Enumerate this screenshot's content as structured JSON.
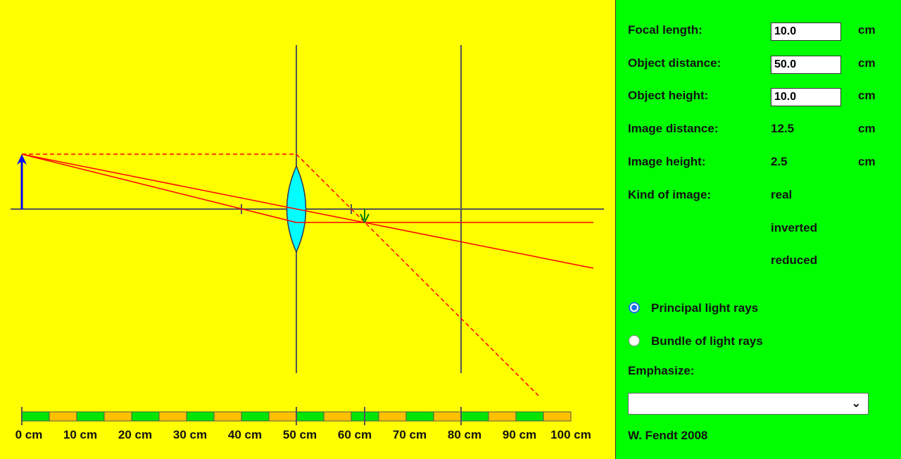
{
  "panel": {
    "focal_length": {
      "label": "Focal length:",
      "value": "10.0",
      "unit": "cm"
    },
    "object_distance": {
      "label": "Object distance:",
      "value": "50.0",
      "unit": "cm"
    },
    "object_height": {
      "label": "Object height:",
      "value": "10.0",
      "unit": "cm"
    },
    "image_distance": {
      "label": "Image distance:",
      "value": "12.5",
      "unit": "cm"
    },
    "image_height": {
      "label": "Image height:",
      "value": "2.5",
      "unit": "cm"
    },
    "kind_of_image": {
      "label": "Kind of image:",
      "values": [
        "real",
        "inverted",
        "reduced"
      ]
    },
    "rays": {
      "principal_label": "Principal light rays",
      "principal_checked": true,
      "bundle_label": "Bundle of light rays",
      "bundle_checked": false
    },
    "emphasize": {
      "label": "Emphasize:",
      "selected": ""
    },
    "author": "W. Fendt 2008"
  },
  "ruler": {
    "labels": [
      "0 cm",
      "10 cm",
      "20 cm",
      "30 cm",
      "40 cm",
      "50 cm",
      "60 cm",
      "70 cm",
      "80 cm",
      "90 cm",
      "100 cm"
    ]
  },
  "colors": {
    "canvas_bg": "#ffff00",
    "panel_bg": "#00ff00",
    "lens": "#00ffff",
    "rays": "#ff0000",
    "object_arrow": "#0000ff",
    "image_arrow": "#008000",
    "ruler_green": "#00e600",
    "ruler_orange": "#ffc000"
  }
}
